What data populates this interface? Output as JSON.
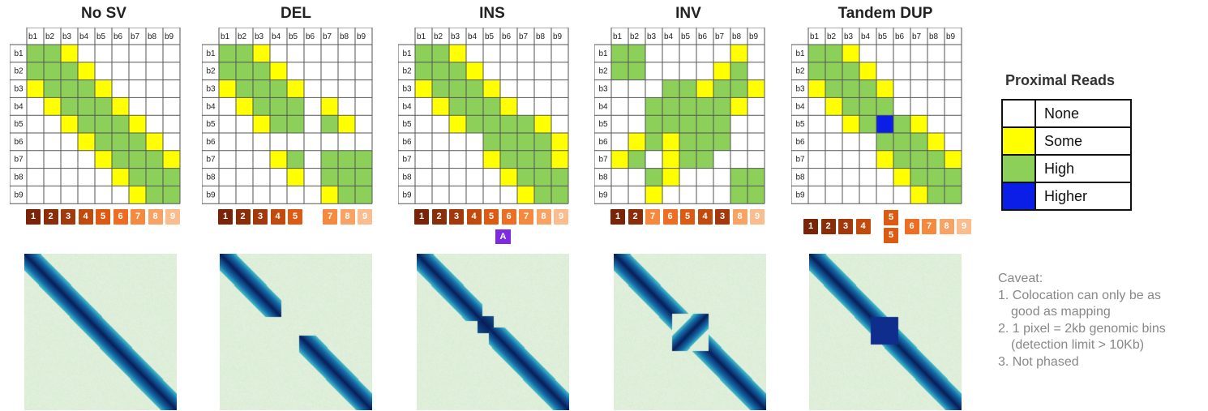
{
  "panels": [
    {
      "title": "No SV",
      "block_labels": [
        "1",
        "2",
        "3",
        "4",
        "5",
        "6",
        "7",
        "8",
        "9"
      ]
    },
    {
      "title": "DEL",
      "block_labels": [
        "1",
        "2",
        "3",
        "4",
        "5",
        "7",
        "8",
        "9"
      ]
    },
    {
      "title": "INS",
      "block_labels": [
        "1",
        "2",
        "3",
        "4",
        "5",
        "6",
        "7",
        "8",
        "9"
      ],
      "insert_marker": "A"
    },
    {
      "title": "INV",
      "block_labels": [
        "1",
        "2",
        "7",
        "6",
        "5",
        "4",
        "3",
        "8",
        "9"
      ]
    },
    {
      "title": "Tandem DUP",
      "block_labels": [
        "1",
        "2",
        "3",
        "4",
        "5",
        "5",
        "6",
        "7",
        "8",
        "9"
      ]
    }
  ],
  "bin_labels": [
    "b1",
    "b2",
    "b3",
    "b4",
    "b5",
    "b6",
    "b7",
    "b8",
    "b9"
  ],
  "legend": {
    "title": "Proximal Reads",
    "items": [
      {
        "label": "None",
        "color": "#ffffff"
      },
      {
        "label": "Some",
        "color": "#ffff00"
      },
      {
        "label": "High",
        "color": "#8cd05a"
      },
      {
        "label": "Higher",
        "color": "#0a1ee8"
      }
    ]
  },
  "caveat": {
    "heading": "Caveat:",
    "items": [
      "1. Colocation can only be as",
      "good as mapping",
      "2. 1 pixel = 2kb genomic bins",
      "(detection limit > 10Kb)",
      "3. Not phased"
    ]
  },
  "colors": {
    "block_1": "#7a2306",
    "block_2": "#8c2d0a",
    "block_3": "#a3380c",
    "block_4": "#c24a0d",
    "block_5": "#dd5a12",
    "block_6": "#ee6d22",
    "block_7": "#f58a3f",
    "block_8": "#f8a264",
    "block_9": "#fbbd8d",
    "marker": "#7c2be2",
    "heatmap_bg": "#dff0da",
    "heatmap_band": "#0b2a6e"
  },
  "matrices": {
    "no_sv": [
      "GGY......",
      "GGGY.....",
      "YGGGY....",
      ".YGGGY...",
      "..YGGGY..",
      "...YGGGY.",
      "....YGGGY",
      ".....YGGG",
      "......YGG"
    ],
    "del": [
      "GGY......",
      "GGGY.....",
      "YGGGY....",
      ".YGGG.Y..",
      "..YGG.GY.",
      ".........",
      "...YG.GGG",
      "....Y.GGG",
      "......YGG"
    ],
    "ins": [
      "GGY......",
      "GGGY.....",
      "YGGGY....",
      ".YGGGY...",
      "..YGGGGY.",
      "....GGGGY",
      "....YGGGY",
      ".....YGGG",
      "......YGG"
    ],
    "inv": [
      "GG.....Y.",
      "GG....YG.",
      "...GGYGGY",
      "..GGGGGY.",
      "..GGGGG..",
      ".YGYGGG..",
      "YG.YGG...",
      "..GY...GG",
      "..Y....GG"
    ],
    "dup": [
      "GGY......",
      "GGGY.....",
      "YGGGY....",
      ".YGGG....",
      "..YGBGY..",
      "....GGGY.",
      "....YGGGY",
      ".....YGGG",
      "......YGG"
    ]
  }
}
